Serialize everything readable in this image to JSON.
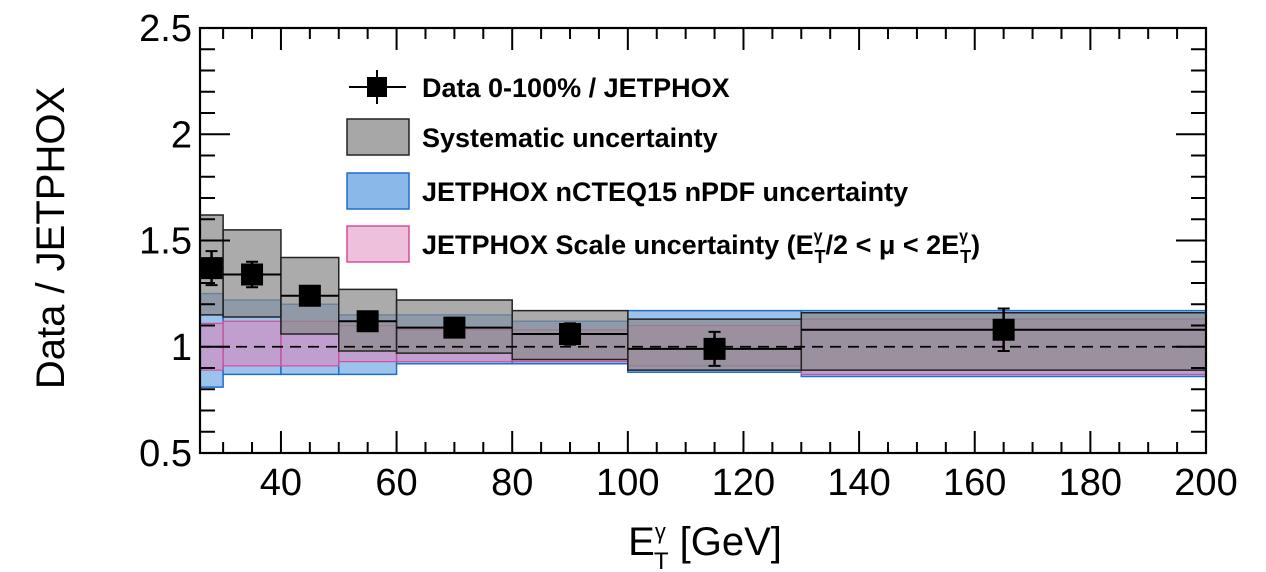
{
  "chart_data": {
    "type": "scatter",
    "xlabel": {
      "main": "E",
      "sup": "γ",
      "sub": "T",
      "rest": " [GeV]"
    },
    "ylabel": "Data / JETPHOX",
    "xlim": [
      26,
      200
    ],
    "ylim": [
      0.5,
      2.5
    ],
    "grid": false,
    "legend_position": "top",
    "xticks": [
      40,
      60,
      80,
      100,
      120,
      140,
      160,
      180,
      200
    ],
    "xtick_labels": [
      "40",
      "60",
      "80",
      "100",
      "120",
      "140",
      "160",
      "180",
      "200"
    ],
    "yticks": [
      0.5,
      1,
      1.5,
      2,
      2.5
    ],
    "ytick_labels": [
      "0.5",
      "1",
      "1.5",
      "2",
      "2.5"
    ],
    "reference_line": 1.0,
    "colors": {
      "data": "#000000",
      "systematic_fill": "#8a8a8a",
      "systematic_edge": "#222222",
      "npdf_fill": "#8ab8e8",
      "npdf_edge": "#1f6fd0",
      "scale_fill": "#d987bd",
      "scale_edge": "#d0509a"
    },
    "legend": [
      {
        "label": "Data 0-100% / JETPHOX",
        "kind": "marker"
      },
      {
        "label": "Systematic uncertainty",
        "kind": "sys"
      },
      {
        "label": "JETPHOX nCTEQ15 nPDF uncertainty",
        "kind": "npdf"
      },
      {
        "label_prefix": "JETPHOX Scale uncertainty (",
        "label_parts": [
          "E",
          "γ",
          "T",
          "/2 < μ < 2E",
          "γ",
          "T",
          ")"
        ],
        "kind": "scale"
      }
    ],
    "bins": [
      {
        "xlo": 26,
        "xhi": 30,
        "x": 28,
        "y": 1.37,
        "stat": 0.08,
        "sys": [
          1.15,
          1.62
        ],
        "npdf": [
          0.81,
          1.25
        ],
        "scale": [
          0.89,
          1.11
        ]
      },
      {
        "xlo": 30,
        "xhi": 40,
        "x": 35,
        "y": 1.34,
        "stat": 0.06,
        "sys": [
          1.14,
          1.55
        ],
        "npdf": [
          0.87,
          1.22
        ],
        "scale": [
          0.91,
          1.12
        ]
      },
      {
        "xlo": 40,
        "xhi": 50,
        "x": 45,
        "y": 1.24,
        "stat": 0.03,
        "sys": [
          1.06,
          1.42
        ],
        "npdf": [
          0.87,
          1.2
        ],
        "scale": [
          0.91,
          1.12
        ]
      },
      {
        "xlo": 50,
        "xhi": 60,
        "x": 55,
        "y": 1.12,
        "stat": 0.03,
        "sys": [
          0.98,
          1.27
        ],
        "npdf": [
          0.87,
          1.15
        ],
        "scale": [
          0.93,
          1.1
        ]
      },
      {
        "xlo": 60,
        "xhi": 80,
        "x": 70,
        "y": 1.09,
        "stat": 0.02,
        "sys": [
          0.97,
          1.22
        ],
        "npdf": [
          0.92,
          1.15
        ],
        "scale": [
          0.93,
          1.08
        ]
      },
      {
        "xlo": 80,
        "xhi": 100,
        "x": 90,
        "y": 1.06,
        "stat": 0.05,
        "sys": [
          0.94,
          1.17
        ],
        "npdf": [
          0.92,
          1.12
        ],
        "scale": [
          0.93,
          1.08
        ]
      },
      {
        "xlo": 100,
        "xhi": 130,
        "x": 115,
        "y": 0.99,
        "stat": 0.08,
        "sys": [
          0.89,
          1.13
        ],
        "npdf": [
          0.88,
          1.17
        ],
        "scale": [
          0.91,
          1.1
        ]
      },
      {
        "xlo": 130,
        "xhi": 200,
        "x": 165,
        "y": 1.08,
        "stat": 0.1,
        "sys": [
          0.89,
          1.16
        ],
        "npdf": [
          0.86,
          1.17
        ],
        "scale": [
          0.87,
          1.13
        ]
      }
    ]
  }
}
